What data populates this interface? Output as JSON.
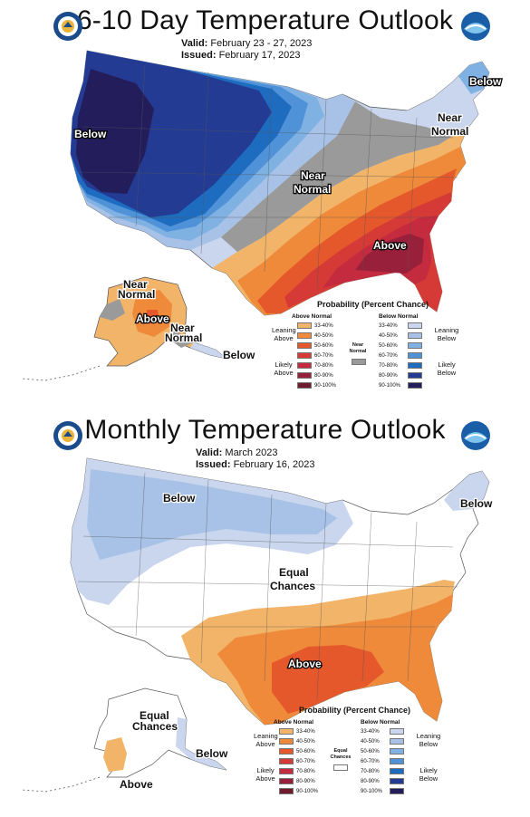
{
  "outlook_610": {
    "title": "6-10 Day Temperature Outlook",
    "valid_label": "Valid:",
    "valid_value": "February 23 - 27, 2023",
    "issued_label": "Issued:",
    "issued_value": "February 17, 2023",
    "region_labels": {
      "west_below": "Below",
      "ne_below": "Below",
      "ne_near_1": "Near",
      "ne_near_2": "Normal",
      "central_near_1": "Near",
      "central_near_2": "Normal",
      "se_above": "Above",
      "ak_near_1": "Near",
      "ak_near_2": "Normal",
      "ak_above": "Above",
      "ak_near2_1": "Near",
      "ak_near2_2": "Normal",
      "ak_below": "Below"
    },
    "legend": {
      "title": "Probability (Percent Chance)",
      "above_header": "Above Normal",
      "below_header": "Below Normal",
      "center_label": "Near Normal",
      "center_color": "#9a9a9a",
      "leaning_above": "Leaning Above",
      "likely_above": "Likely Above",
      "leaning_below": "Leaning Below",
      "likely_below": "Likely Below",
      "ranges": [
        "33-40%",
        "40-50%",
        "50-60%",
        "60-70%",
        "70-80%",
        "80-90%",
        "90-100%"
      ],
      "above_colors": [
        "#f2b468",
        "#ef8a3a",
        "#e4582c",
        "#d53a37",
        "#c42b3f",
        "#99203a",
        "#6f1a2d"
      ],
      "below_colors": [
        "#c9d6ee",
        "#a7c2e6",
        "#7fb1e3",
        "#4f92d8",
        "#1e6cc0",
        "#233b93",
        "#231d5c"
      ]
    }
  },
  "outlook_monthly": {
    "title": "Monthly Temperature Outlook",
    "valid_label": "Valid:",
    "valid_value": "March 2023",
    "issued_label": "Issued:",
    "issued_value": "February 16, 2023",
    "region_labels": {
      "north_below": "Below",
      "ne_below": "Below",
      "equal_1": "Equal",
      "equal_2": "Chances",
      "south_above": "Above",
      "ak_equal_1": "Equal",
      "ak_equal_2": "Chances",
      "ak_below": "Below",
      "ak_above": "Above"
    },
    "legend": {
      "title": "Probability (Percent Chance)",
      "above_header": "Above Normal",
      "below_header": "Below Normal",
      "center_label": "Equal Chances",
      "center_color": "#ffffff",
      "leaning_above": "Leaning Above",
      "likely_above": "Likely Above",
      "leaning_below": "Leaning Below",
      "likely_below": "Likely Below",
      "ranges": [
        "33-40%",
        "40-50%",
        "50-60%",
        "60-70%",
        "70-80%",
        "80-90%",
        "90-100%"
      ],
      "above_colors": [
        "#f2b468",
        "#ef8a3a",
        "#e4582c",
        "#d53a37",
        "#c42b3f",
        "#99203a",
        "#6f1a2d"
      ],
      "below_colors": [
        "#c9d6ee",
        "#a7c2e6",
        "#7fb1e3",
        "#4f92d8",
        "#1e6cc0",
        "#233b93",
        "#231d5c"
      ]
    }
  }
}
